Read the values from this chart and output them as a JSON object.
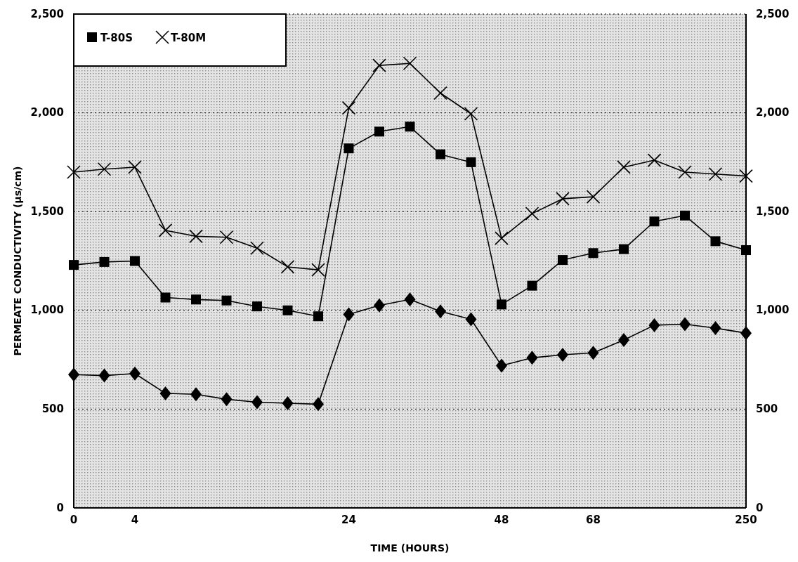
{
  "chart_data": {
    "type": "line",
    "xlabel": "TIME (HOURS)",
    "ylabel": "PERMEATE CONDUCTIVITY (µs/cm)",
    "categories": [
      "0",
      null,
      "4",
      null,
      null,
      null,
      null,
      null,
      null,
      "24",
      null,
      null,
      null,
      null,
      "48",
      null,
      null,
      "68",
      null,
      null,
      null,
      null,
      "250"
    ],
    "series": [
      {
        "name": "T-80S",
        "color": "#000000",
        "marker": "square",
        "values": [
          1230,
          1245,
          1250,
          1065,
          1055,
          1050,
          1020,
          1000,
          970,
          1820,
          1905,
          1930,
          1790,
          1750,
          1030,
          1125,
          1255,
          1290,
          1310,
          1450,
          1480,
          1350,
          1305
        ]
      },
      {
        "name": "T-80M",
        "color": "#000000",
        "marker": "cross",
        "values": [
          1700,
          1715,
          1725,
          1405,
          1375,
          1370,
          1315,
          1220,
          1205,
          2025,
          2240,
          2250,
          2100,
          1995,
          1365,
          1490,
          1565,
          1575,
          1725,
          1760,
          1700,
          1690,
          1680
        ]
      },
      {
        "color": "#000000",
        "marker": "diamond",
        "values": [
          675,
          670,
          680,
          580,
          575,
          550,
          535,
          530,
          525,
          980,
          1025,
          1055,
          995,
          955,
          720,
          760,
          775,
          785,
          850,
          925,
          930,
          910,
          885
        ]
      }
    ],
    "ylim": [
      0,
      2500
    ],
    "yticks": [
      0,
      500,
      {
        "value": 1000,
        "label": "1,000"
      },
      {
        "value": 1500,
        "label": "1,500"
      },
      {
        "value": 2000,
        "label": "2,000"
      },
      {
        "value": 2500,
        "label": "2,500"
      }
    ],
    "y2lim": [
      0,
      2500
    ],
    "y2ticks": [
      0,
      500,
      {
        "value": 1000,
        "label": "1,000"
      },
      {
        "value": 1500,
        "label": "1,500"
      },
      {
        "value": 2000,
        "label": "2,000"
      },
      {
        "value": 2500,
        "label": "2,500"
      }
    ],
    "grid": "y",
    "legend": "top left"
  }
}
